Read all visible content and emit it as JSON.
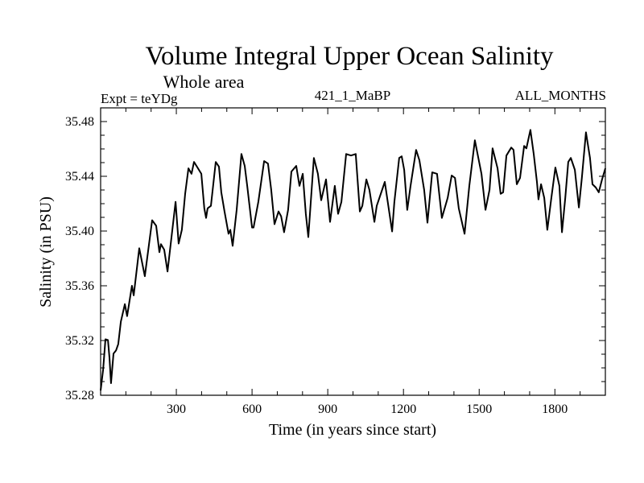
{
  "chart_data": {
    "type": "line",
    "title": "Volume Integral Upper Ocean Salinity",
    "subtitle": "Whole area",
    "annotations": {
      "left": "Expt = teYDg",
      "center": "421_1_MaBP",
      "right": "ALL_MONTHS"
    },
    "xlabel": "Time (in years since start)",
    "ylabel": "Salinity (in PSU)",
    "xlim": [
      0,
      2000
    ],
    "ylim": [
      35.28,
      35.49
    ],
    "xticks": [
      300,
      600,
      900,
      1200,
      1500,
      1800
    ],
    "xtick_labels": [
      "300",
      "600",
      "900",
      "1200",
      "1500",
      "1800"
    ],
    "x_minor_step": 100,
    "yticks": [
      35.28,
      35.32,
      35.36,
      35.4,
      35.44,
      35.48
    ],
    "ytick_labels": [
      "35.28",
      "35.32",
      "35.36",
      "35.40",
      "35.44",
      "35.48"
    ],
    "y_minor_step": 0.01,
    "grid": false,
    "line_color": "#000000",
    "series": [
      {
        "name": "Salinity",
        "x": [
          0,
          10,
          19,
          29,
          35,
          41,
          51,
          61,
          70,
          80,
          96,
          105,
          124,
          131,
          153,
          175,
          204,
          220,
          233,
          239,
          252,
          265,
          297,
          309,
          322,
          335,
          348,
          360,
          370,
          380,
          399,
          411,
          418,
          424,
          437,
          456,
          469,
          478,
          491,
          507,
          514,
          523,
          539,
          558,
          571,
          581,
          600,
          606,
          625,
          648,
          663,
          676,
          689,
          705,
          715,
          727,
          743,
          756,
          775,
          788,
          801,
          813,
          823,
          845,
          861,
          874,
          893,
          909,
          928,
          941,
          954,
          973,
          992,
          1011,
          1027,
          1037,
          1053,
          1065,
          1085,
          1094,
          1126,
          1155,
          1164,
          1183,
          1193,
          1203,
          1215,
          1228,
          1250,
          1263,
          1282,
          1295,
          1314,
          1333,
          1352,
          1375,
          1391,
          1404,
          1419,
          1442,
          1461,
          1483,
          1509,
          1525,
          1541,
          1553,
          1573,
          1585,
          1595,
          1608,
          1627,
          1636,
          1649,
          1662,
          1678,
          1687,
          1703,
          1716,
          1729,
          1735,
          1745,
          1758,
          1770,
          1786,
          1802,
          1818,
          1828,
          1841,
          1853,
          1863,
          1879,
          1895,
          1907,
          1923,
          1939,
          1949,
          1962,
          1974,
          1987,
          2000
        ],
        "values": [
          35.2835,
          35.2987,
          35.3209,
          35.3203,
          35.3074,
          35.2888,
          35.3104,
          35.3127,
          35.3174,
          35.3337,
          35.3466,
          35.3378,
          35.36,
          35.353,
          35.3874,
          35.367,
          35.4079,
          35.4038,
          35.3845,
          35.3904,
          35.3863,
          35.3705,
          35.4213,
          35.3909,
          35.4009,
          35.4272,
          35.4458,
          35.4418,
          35.4505,
          35.4476,
          35.4418,
          35.4166,
          35.4096,
          35.4166,
          35.4184,
          35.4505,
          35.447,
          35.4283,
          35.4143,
          35.398,
          35.4009,
          35.3892,
          35.4155,
          35.4563,
          35.4476,
          35.433,
          35.4026,
          35.4026,
          35.4213,
          35.4511,
          35.4493,
          35.4301,
          35.405,
          35.4143,
          35.4108,
          35.3991,
          35.4155,
          35.4435,
          35.4476,
          35.433,
          35.4418,
          35.4126,
          35.3956,
          35.4534,
          35.4418,
          35.4225,
          35.4377,
          35.4067,
          35.433,
          35.4126,
          35.4213,
          35.4563,
          35.4552,
          35.4563,
          35.4143,
          35.4184,
          35.4377,
          35.4301,
          35.4067,
          35.4184,
          35.4359,
          35.3997,
          35.4213,
          35.4534,
          35.4546,
          35.4447,
          35.4155,
          35.433,
          35.4593,
          35.4517,
          35.4301,
          35.4061,
          35.4429,
          35.4418,
          35.4096,
          35.4242,
          35.4406,
          35.4388,
          35.4166,
          35.398,
          35.433,
          35.4663,
          35.4418,
          35.4155,
          35.4301,
          35.4604,
          35.4458,
          35.4272,
          35.4283,
          35.4552,
          35.461,
          35.4593,
          35.4342,
          35.4388,
          35.4622,
          35.4604,
          35.4739,
          35.4563,
          35.4359,
          35.4231,
          35.4342,
          35.4242,
          35.4009,
          35.4242,
          35.4464,
          35.433,
          35.3991,
          35.4242,
          35.4505,
          35.4534,
          35.4447,
          35.4172,
          35.4388,
          35.4721,
          35.4534,
          35.4342,
          35.4318,
          35.4283,
          35.4377,
          35.4458
        ]
      }
    ]
  }
}
